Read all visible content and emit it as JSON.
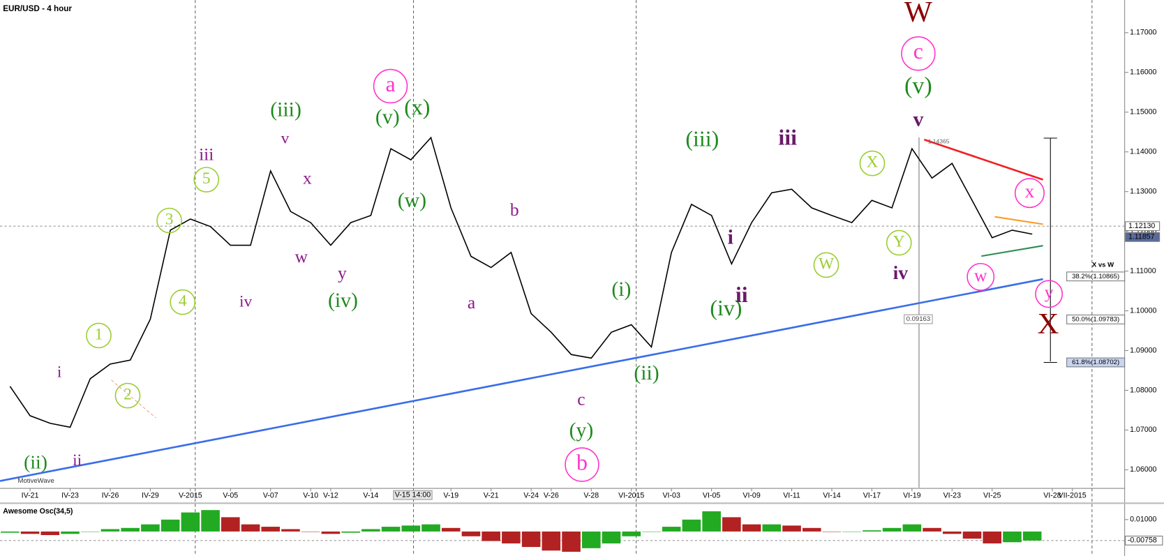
{
  "chart_data": {
    "type": "line",
    "title": "EUR/USD - 4 hour",
    "watermark": "MotiveWave",
    "color": "#000000",
    "categories": [
      null,
      "IV-21",
      null,
      "IV-23",
      null,
      "IV-26",
      null,
      "IV-29",
      null,
      "V-2015",
      null,
      "V-05",
      null,
      "V-07",
      null,
      "V-10",
      "V-12",
      null,
      "V-14",
      null,
      null,
      null,
      "V-19",
      null,
      "V-21",
      null,
      "V-24",
      "V-26",
      null,
      "V-28",
      null,
      "VI-2015",
      null,
      "VI-03",
      null,
      "VI-05",
      null,
      "VI-09",
      null,
      "VI-11",
      null,
      "VI-14",
      null,
      "VI-17",
      null,
      "VI-19",
      null,
      "VI-23",
      null,
      "VI-25",
      null,
      null,
      "VI-28",
      "VII-2015",
      null,
      null
    ],
    "values": [
      1.081,
      1.0736,
      1.0717,
      1.0707,
      1.0829,
      1.0866,
      1.0876,
      1.0979,
      1.1203,
      1.1231,
      1.1212,
      1.1165,
      1.1165,
      1.1352,
      1.125,
      1.1222,
      1.1165,
      1.1222,
      1.124,
      1.1408,
      1.138,
      1.1436,
      1.1259,
      1.1137,
      1.1109,
      1.1147,
      1.0993,
      1.0946,
      1.089,
      1.0881,
      1.0946,
      1.0965,
      1.0909,
      1.1147,
      1.1268,
      1.124,
      1.1118,
      1.1222,
      1.1297,
      1.1306,
      1.1259,
      1.124,
      1.1222,
      1.1278,
      1.1259,
      1.1408,
      1.1334,
      1.1371,
      1.1278,
      1.1184,
      1.1203,
      1.1193,
      null,
      null,
      null,
      null
    ],
    "cursor_label": "V-15 14:00",
    "ylim": [
      1.0555,
      1.1782
    ],
    "yticks": [
      {
        "value": 1.06,
        "label": "1.06000"
      },
      {
        "value": 1.07,
        "label": "1.07000"
      },
      {
        "value": 1.08,
        "label": "1.08000"
      },
      {
        "value": 1.09,
        "label": "1.09000"
      },
      {
        "value": 1.1,
        "label": "1.10000"
      },
      {
        "value": 1.11,
        "label": "1.11000"
      },
      {
        "value": 1.12,
        "label": "1.12000"
      },
      {
        "value": 1.13,
        "label": "1.13000"
      },
      {
        "value": 1.14,
        "label": "1.14000"
      },
      {
        "value": 1.15,
        "label": "1.15000"
      },
      {
        "value": 1.16,
        "label": "1.16000"
      },
      {
        "value": 1.17,
        "label": "1.17000"
      }
    ],
    "price_markers": [
      {
        "value": 1.1213,
        "label": "1.12130"
      },
      {
        "value": 1.11857,
        "label": "1.11857"
      }
    ],
    "fib_title": "X vs W",
    "fib_levels": [
      {
        "value": 1.10865,
        "label": "38.2%(1.10865)"
      },
      {
        "value": 1.09783,
        "label": "50.0%(1.09783)"
      },
      {
        "value": 1.08702,
        "label": "61.8%(1.08702)"
      }
    ],
    "measure_labels": [
      "0.09163",
      "1.14365"
    ],
    "annotations": [
      {
        "text": "(ii)",
        "color": "#1e8a1e"
      },
      {
        "text": "(iii)",
        "color": "#1e8a1e"
      },
      {
        "text": "(iv)",
        "color": "#1e8a1e"
      },
      {
        "text": "(v)",
        "color": "#1e8a1e"
      },
      {
        "text": "(x)",
        "color": "#1e8a1e"
      },
      {
        "text": "(w)",
        "color": "#1e8a1e"
      },
      {
        "text": "(y)",
        "color": "#1e8a1e"
      },
      {
        "text": "(i)",
        "color": "#1e8a1e"
      },
      {
        "text": "(ii)",
        "color": "#1e8a1e"
      },
      {
        "text": "(iii)",
        "color": "#1e8a1e"
      },
      {
        "text": "(iv)",
        "color": "#1e8a1e"
      },
      {
        "text": "(v)",
        "color": "#1e8a1e"
      },
      {
        "text": "iii",
        "color": "#8b1a8b"
      },
      {
        "text": "v",
        "color": "#8b1a8b"
      },
      {
        "text": "x",
        "color": "#8b1a8b"
      },
      {
        "text": "w",
        "color": "#8b1a8b"
      },
      {
        "text": "iv",
        "color": "#8b1a8b"
      },
      {
        "text": "y",
        "color": "#8b1a8b"
      },
      {
        "text": "i",
        "color": "#8b1a8b"
      },
      {
        "text": "ii",
        "color": "#8b1a8b"
      },
      {
        "text": "b",
        "color": "#8b1a8b"
      },
      {
        "text": "a",
        "color": "#8b1a8b"
      },
      {
        "text": "c",
        "color": "#8b1a8b"
      },
      {
        "text": "iii",
        "color": "#6a1a6a"
      },
      {
        "text": "i",
        "color": "#6a1a6a"
      },
      {
        "text": "ii",
        "color": "#6a1a6a"
      },
      {
        "text": "v",
        "color": "#6a1a6a"
      },
      {
        "text": "iv",
        "color": "#6a1a6a"
      },
      {
        "text": "1",
        "color": "#9acd32",
        "circled": true
      },
      {
        "text": "2",
        "color": "#9acd32",
        "circled": true
      },
      {
        "text": "3",
        "color": "#9acd32",
        "circled": true
      },
      {
        "text": "4",
        "color": "#9acd32",
        "circled": true
      },
      {
        "text": "5",
        "color": "#9acd32",
        "circled": true
      },
      {
        "text": "X",
        "color": "#9acd32",
        "circled": true
      },
      {
        "text": "W",
        "color": "#9acd32",
        "circled": true
      },
      {
        "text": "Y",
        "color": "#9acd32",
        "circled": true
      },
      {
        "text": "a",
        "color": "#ff33cc",
        "circled": true
      },
      {
        "text": "b",
        "color": "#ff33cc",
        "circled": true
      },
      {
        "text": "c",
        "color": "#ff33cc",
        "circled": true
      },
      {
        "text": "x",
        "color": "#ff33cc",
        "circled": true
      },
      {
        "text": "w",
        "color": "#ff33cc",
        "circled": true
      },
      {
        "text": "y",
        "color": "#ff33cc",
        "circled": true
      },
      {
        "text": "W",
        "color": "#8b0000"
      },
      {
        "text": "X",
        "color": "#8b0000"
      }
    ],
    "oscillator": {
      "title": "Awesome Osc(34,5)",
      "up_color": "#22aa22",
      "down_color": "#b22222",
      "values": [
        -0.001,
        -0.002,
        -0.003,
        -0.002,
        0.0,
        0.002,
        0.003,
        0.006,
        0.01,
        0.016,
        0.018,
        0.012,
        0.006,
        0.004,
        0.002,
        0.0,
        -0.002,
        -0.001,
        0.002,
        0.004,
        0.005,
        0.006,
        0.003,
        -0.004,
        -0.008,
        -0.01,
        -0.013,
        -0.016,
        -0.017,
        -0.014,
        -0.01,
        -0.004,
        0.0,
        0.004,
        0.01,
        0.017,
        0.012,
        0.006,
        0.006,
        0.005,
        0.003,
        0.0,
        0.0,
        0.001,
        0.003,
        0.006,
        0.003,
        -0.002,
        -0.006,
        -0.01,
        -0.009,
        -0.0076,
        null,
        null,
        null,
        null
      ],
      "ylim": [
        -0.018,
        0.0225
      ],
      "yticks": [
        {
          "value": 0.01,
          "label": "0.01000"
        }
      ],
      "marker": {
        "value": -0.00758,
        "label": "-0.00758"
      }
    }
  }
}
